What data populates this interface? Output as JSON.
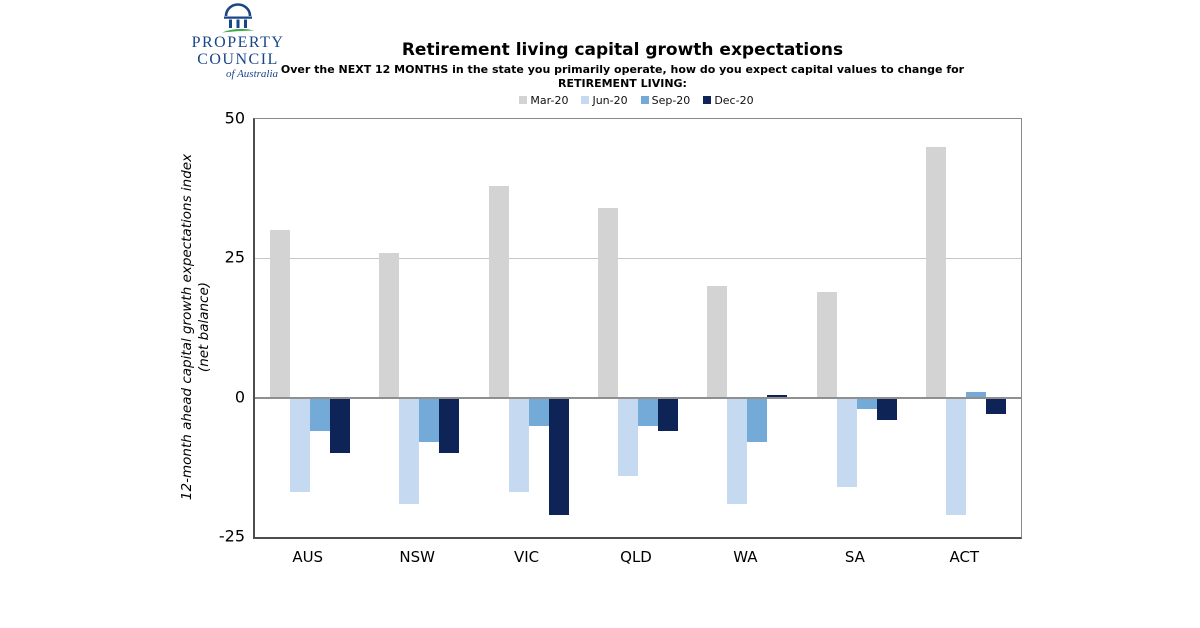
{
  "logo": {
    "line1": "PROPERTY",
    "line2": "COUNCIL",
    "line3": "of Australia",
    "navy": "#1a4688",
    "green": "#3fa845"
  },
  "header": {
    "title": "Retirement living capital growth expectations",
    "subtitle": "Over the NEXT 12 MONTHS in the state you primarily operate, how do you expect capital values to change for RETIREMENT LIVING:"
  },
  "axis": {
    "ytitle_line1": "12-month ahead capital growth expectations index",
    "ytitle_line2": "(net balance)"
  },
  "chart_data": {
    "type": "bar",
    "title": "Retirement living capital growth expectations",
    "categories": [
      "AUS",
      "NSW",
      "VIC",
      "QLD",
      "WA",
      "SA",
      "ACT"
    ],
    "series": [
      {
        "name": "Mar-20",
        "color": "#d3d3d3",
        "values": [
          30,
          26,
          38,
          34,
          20,
          19,
          45
        ]
      },
      {
        "name": "Jun-20",
        "color": "#c5d9f1",
        "values": [
          -17,
          -19,
          -17,
          -14,
          -19,
          -16,
          -21
        ]
      },
      {
        "name": "Sep-20",
        "color": "#74aad8",
        "values": [
          -6,
          -8,
          -5,
          -5,
          -8,
          -2,
          1
        ]
      },
      {
        "name": "Dec-20",
        "color": "#0e2356",
        "values": [
          -10,
          -10,
          -21,
          -6,
          0.5,
          -4,
          -3
        ]
      }
    ],
    "xlabel": "",
    "ylabel": "12-month ahead capital growth expectations index (net balance)",
    "ylim": [
      -25,
      50
    ],
    "yticks": [
      50,
      25,
      0,
      -25
    ],
    "gridlines_at": [
      25
    ],
    "zero_line_at": 0,
    "legend_position": "top",
    "grid": "horizontal"
  }
}
